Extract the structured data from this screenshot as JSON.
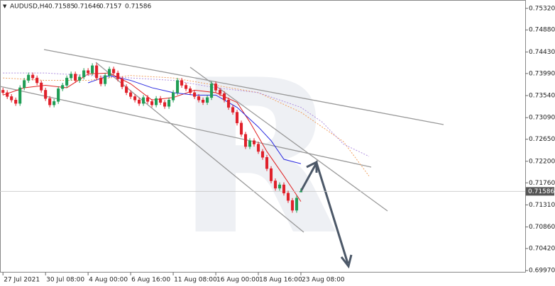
{
  "chart_data": {
    "type": "candlestick",
    "symbol": "AUDUSD,H4",
    "ylim": [
      0.6993,
      0.7549
    ],
    "yticks": [
      {
        "value": 0.7532,
        "label": "0.75320"
      },
      {
        "value": 0.7488,
        "label": "0.74880"
      },
      {
        "value": 0.7443,
        "label": "0.74430"
      },
      {
        "value": 0.7399,
        "label": "0.73990"
      },
      {
        "value": 0.7354,
        "label": "0.73540"
      },
      {
        "value": 0.7309,
        "label": "0.73090"
      },
      {
        "value": 0.7265,
        "label": "0.72650"
      },
      {
        "value": 0.722,
        "label": "0.72200"
      },
      {
        "value": 0.7176,
        "label": "0.71760"
      },
      {
        "value": 0.7131,
        "label": "0.71310"
      },
      {
        "value": 0.7086,
        "label": "0.70860"
      },
      {
        "value": 0.7042,
        "label": "0.70420"
      },
      {
        "value": 0.6997,
        "label": "0.69970"
      }
    ],
    "xlim": [
      -0.7,
      122.7
    ],
    "xticks": [
      {
        "value": 0,
        "label": "27 Jul 2021"
      },
      {
        "value": 10,
        "label": "30 Jul 08:00"
      },
      {
        "value": 20,
        "label": "4 Aug 00:00"
      },
      {
        "value": 30,
        "label": "6 Aug 16:00"
      },
      {
        "value": 40,
        "label": "11 Aug 08:00"
      },
      {
        "value": 50,
        "label": "16 Aug 00:00"
      },
      {
        "value": 60,
        "label": "18 Aug 16:00"
      },
      {
        "value": 70,
        "label": "23 Aug 08:00"
      }
    ],
    "up_color": "#1f9d55",
    "down_color": "#e0202a",
    "open": [
      0.7365,
      0.736,
      0.7352,
      0.7345,
      0.7338,
      0.737,
      0.7385,
      0.7396,
      0.739,
      0.738,
      0.7365,
      0.7348,
      0.7335,
      0.7342,
      0.7368,
      0.7375,
      0.739,
      0.7398,
      0.7385,
      0.7392,
      0.7405,
      0.74,
      0.7415,
      0.739,
      0.7378,
      0.7395,
      0.7408,
      0.74,
      0.7388,
      0.7372,
      0.736,
      0.7352,
      0.7345,
      0.7338,
      0.735,
      0.7342,
      0.7335,
      0.7348,
      0.734,
      0.7332,
      0.7345,
      0.736,
      0.7385,
      0.7375,
      0.7368,
      0.736,
      0.7352,
      0.7345,
      0.734,
      0.735,
      0.7378,
      0.7365,
      0.7358,
      0.7345,
      0.733,
      0.732,
      0.7298,
      0.7275,
      0.725,
      0.7262,
      0.7255,
      0.724,
      0.7228,
      0.7205,
      0.718,
      0.7165,
      0.7172,
      0.7155,
      0.714,
      0.712,
      0.71585
    ],
    "high": [
      0.737,
      0.7365,
      0.7357,
      0.735,
      0.7375,
      0.739,
      0.7401,
      0.7401,
      0.7395,
      0.7385,
      0.737,
      0.7353,
      0.7347,
      0.7373,
      0.738,
      0.7395,
      0.7403,
      0.7403,
      0.7397,
      0.741,
      0.741,
      0.742,
      0.742,
      0.7395,
      0.74,
      0.7413,
      0.7413,
      0.7405,
      0.7393,
      0.7377,
      0.7365,
      0.7357,
      0.735,
      0.7355,
      0.7355,
      0.7347,
      0.7353,
      0.7353,
      0.7345,
      0.735,
      0.7365,
      0.739,
      0.739,
      0.738,
      0.7373,
      0.7365,
      0.7357,
      0.735,
      0.7355,
      0.7383,
      0.7383,
      0.737,
      0.7363,
      0.735,
      0.7335,
      0.7325,
      0.7303,
      0.728,
      0.7267,
      0.7267,
      0.726,
      0.7245,
      0.7233,
      0.721,
      0.7185,
      0.7177,
      0.7177,
      0.716,
      0.7145,
      0.715,
      0.71646
    ],
    "low": [
      0.7355,
      0.7347,
      0.734,
      0.7333,
      0.7333,
      0.7365,
      0.738,
      0.7385,
      0.7375,
      0.736,
      0.7343,
      0.733,
      0.733,
      0.7337,
      0.7363,
      0.737,
      0.7385,
      0.738,
      0.738,
      0.7387,
      0.7395,
      0.7395,
      0.7385,
      0.7373,
      0.7373,
      0.739,
      0.7395,
      0.7383,
      0.7367,
      0.7355,
      0.7347,
      0.734,
      0.7333,
      0.7333,
      0.7337,
      0.733,
      0.733,
      0.7335,
      0.7327,
      0.7327,
      0.734,
      0.7355,
      0.737,
      0.7363,
      0.7355,
      0.7347,
      0.734,
      0.7335,
      0.7335,
      0.7345,
      0.736,
      0.7353,
      0.734,
      0.7325,
      0.7315,
      0.7293,
      0.727,
      0.7245,
      0.7245,
      0.725,
      0.7235,
      0.7223,
      0.72,
      0.7175,
      0.716,
      0.716,
      0.715,
      0.7135,
      0.7115,
      0.7115,
      0.7157
    ],
    "close": [
      0.736,
      0.7352,
      0.7345,
      0.7338,
      0.737,
      0.7385,
      0.7396,
      0.739,
      0.738,
      0.7365,
      0.7348,
      0.7335,
      0.7342,
      0.7368,
      0.7375,
      0.739,
      0.7398,
      0.7385,
      0.7392,
      0.7405,
      0.74,
      0.7415,
      0.739,
      0.7378,
      0.7395,
      0.7408,
      0.74,
      0.7388,
      0.7372,
      0.736,
      0.7352,
      0.7345,
      0.7338,
      0.735,
      0.7342,
      0.7335,
      0.7348,
      0.734,
      0.7332,
      0.7345,
      0.736,
      0.7385,
      0.7375,
      0.7368,
      0.736,
      0.7352,
      0.7345,
      0.734,
      0.735,
      0.7378,
      0.7365,
      0.7358,
      0.7345,
      0.733,
      0.732,
      0.7298,
      0.7275,
      0.725,
      0.7262,
      0.7255,
      0.724,
      0.7228,
      0.7205,
      0.718,
      0.7165,
      0.7172,
      0.7155,
      0.714,
      0.712,
      0.7145,
      0.71586
    ],
    "last_price": 0.71586,
    "lines": [
      {
        "color": "#e02020",
        "dash": false,
        "x": [
          0,
          5,
          10,
          15,
          20,
          25,
          30,
          35,
          40,
          45,
          50,
          55,
          58,
          62,
          66,
          70
        ],
        "values": [
          0.7355,
          0.737,
          0.7375,
          0.737,
          0.7398,
          0.74,
          0.7378,
          0.7345,
          0.735,
          0.7365,
          0.736,
          0.734,
          0.73,
          0.724,
          0.719,
          0.7138
        ]
      },
      {
        "color": "#2a2ae0",
        "dash": false,
        "x": [
          20,
          25,
          30,
          35,
          40,
          45,
          50,
          55,
          60,
          63,
          66,
          70
        ],
        "values": [
          0.738,
          0.7395,
          0.7385,
          0.737,
          0.736,
          0.7355,
          0.7355,
          0.733,
          0.729,
          0.7262,
          0.7224,
          0.7215
        ]
      },
      {
        "color": "#f0a060",
        "dash": true,
        "x": [
          0,
          10,
          20,
          30,
          40,
          50,
          60,
          70,
          75,
          80,
          86
        ],
        "values": [
          0.739,
          0.7385,
          0.7385,
          0.7395,
          0.739,
          0.7375,
          0.736,
          0.732,
          0.729,
          0.726,
          0.719
        ]
      },
      {
        "color": "#b090e0",
        "dash": true,
        "x": [
          0,
          10,
          20,
          30,
          40,
          50,
          60,
          70,
          75,
          80,
          86
        ],
        "values": [
          0.74,
          0.74,
          0.7395,
          0.739,
          0.7385,
          0.737,
          0.736,
          0.733,
          0.73,
          0.7255,
          0.723
        ]
      }
    ]
  }
}
